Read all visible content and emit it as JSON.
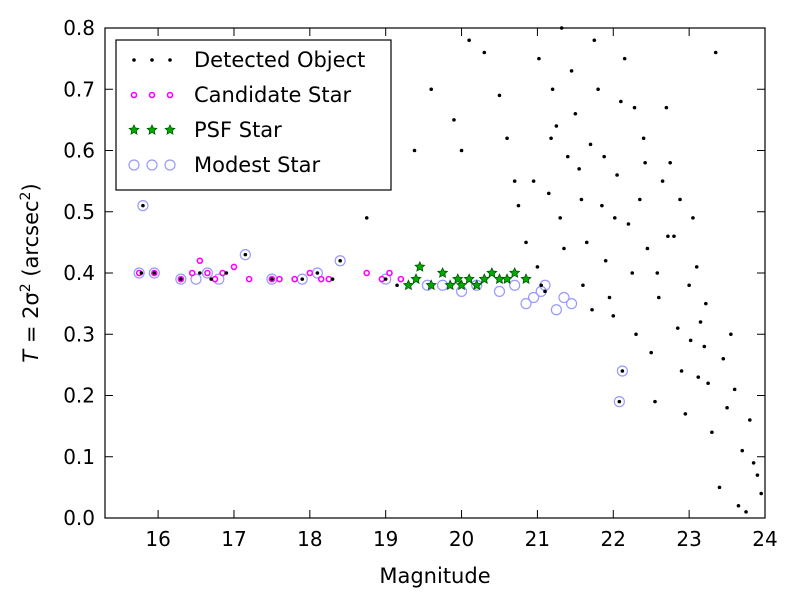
{
  "chart_data": {
    "type": "scatter",
    "xlabel": "Magnitude",
    "ylabel_parts": [
      "T",
      " = 2σ",
      "2",
      " (arcsec",
      "2",
      ")"
    ],
    "xlim": [
      15.3,
      24.0
    ],
    "ylim": [
      0.0,
      0.8
    ],
    "x_ticks": [
      16,
      17,
      18,
      19,
      20,
      21,
      22,
      23,
      24
    ],
    "y_ticks": [
      0.0,
      0.1,
      0.2,
      0.3,
      0.4,
      0.5,
      0.6,
      0.7,
      0.8
    ],
    "x_tick_labels": [
      "16",
      "17",
      "18",
      "19",
      "20",
      "21",
      "22",
      "23",
      "24"
    ],
    "y_tick_labels": [
      "0.0",
      "0.1",
      "0.2",
      "0.3",
      "0.4",
      "0.5",
      "0.6",
      "0.7",
      "0.8"
    ],
    "grid": false,
    "legend_position": "top-left",
    "colors": {
      "detected": "#000000",
      "candidate": "#ff00ff",
      "psf": "#00aa00",
      "modest": "#9999ff"
    },
    "series": [
      {
        "name": "Detected Object",
        "marker": "dot",
        "points": [
          [
            15.8,
            0.51
          ],
          [
            15.78,
            0.4
          ],
          [
            15.95,
            0.4
          ],
          [
            16.3,
            0.39
          ],
          [
            16.55,
            0.4
          ],
          [
            16.7,
            0.39
          ],
          [
            16.9,
            0.4
          ],
          [
            17.15,
            0.43
          ],
          [
            17.5,
            0.39
          ],
          [
            17.9,
            0.39
          ],
          [
            18.1,
            0.4
          ],
          [
            18.3,
            0.39
          ],
          [
            18.4,
            0.42
          ],
          [
            18.75,
            0.49
          ],
          [
            19.0,
            0.39
          ],
          [
            19.15,
            0.38
          ],
          [
            19.6,
            0.7
          ],
          [
            19.9,
            0.65
          ],
          [
            19.38,
            0.6
          ],
          [
            20.0,
            0.6
          ],
          [
            20.1,
            0.78
          ],
          [
            20.3,
            0.76
          ],
          [
            20.5,
            0.69
          ],
          [
            20.6,
            0.62
          ],
          [
            20.7,
            0.55
          ],
          [
            20.75,
            0.51
          ],
          [
            20.85,
            0.45
          ],
          [
            20.95,
            0.55
          ],
          [
            21.0,
            0.41
          ],
          [
            21.05,
            0.38
          ],
          [
            21.1,
            0.37
          ],
          [
            21.15,
            0.53
          ],
          [
            21.2,
            0.7
          ],
          [
            21.25,
            0.64
          ],
          [
            21.3,
            0.49
          ],
          [
            21.35,
            0.44
          ],
          [
            21.4,
            0.59
          ],
          [
            21.45,
            0.73
          ],
          [
            21.5,
            0.66
          ],
          [
            21.55,
            0.57
          ],
          [
            21.6,
            0.38
          ],
          [
            21.65,
            0.45
          ],
          [
            21.7,
            0.61
          ],
          [
            21.75,
            0.78
          ],
          [
            21.8,
            0.7
          ],
          [
            21.85,
            0.51
          ],
          [
            21.9,
            0.42
          ],
          [
            21.95,
            0.36
          ],
          [
            22.0,
            0.33
          ],
          [
            22.05,
            0.56
          ],
          [
            22.1,
            0.68
          ],
          [
            22.15,
            0.75
          ],
          [
            22.2,
            0.48
          ],
          [
            22.25,
            0.4
          ],
          [
            22.3,
            0.3
          ],
          [
            22.35,
            0.52
          ],
          [
            22.4,
            0.62
          ],
          [
            22.45,
            0.44
          ],
          [
            22.5,
            0.27
          ],
          [
            22.55,
            0.19
          ],
          [
            22.6,
            0.36
          ],
          [
            22.65,
            0.55
          ],
          [
            22.7,
            0.67
          ],
          [
            22.75,
            0.58
          ],
          [
            22.8,
            0.46
          ],
          [
            22.85,
            0.31
          ],
          [
            22.9,
            0.24
          ],
          [
            22.95,
            0.17
          ],
          [
            23.0,
            0.38
          ],
          [
            23.05,
            0.49
          ],
          [
            23.1,
            0.41
          ],
          [
            23.15,
            0.32
          ],
          [
            23.2,
            0.28
          ],
          [
            23.25,
            0.22
          ],
          [
            23.3,
            0.14
          ],
          [
            23.35,
            0.76
          ],
          [
            23.4,
            0.05
          ],
          [
            23.45,
            0.26
          ],
          [
            23.5,
            0.18
          ],
          [
            23.55,
            0.3
          ],
          [
            23.6,
            0.21
          ],
          [
            23.65,
            0.02
          ],
          [
            23.7,
            0.11
          ],
          [
            23.75,
            0.01
          ],
          [
            23.8,
            0.16
          ],
          [
            23.85,
            0.09
          ],
          [
            23.9,
            0.07
          ],
          [
            23.95,
            0.04
          ],
          [
            22.08,
            0.19
          ],
          [
            22.12,
            0.24
          ],
          [
            21.02,
            0.75
          ],
          [
            21.18,
            0.62
          ],
          [
            21.32,
            0.8
          ],
          [
            21.58,
            0.52
          ],
          [
            21.72,
            0.34
          ],
          [
            21.88,
            0.59
          ],
          [
            22.02,
            0.49
          ],
          [
            22.28,
            0.67
          ],
          [
            22.42,
            0.58
          ],
          [
            22.58,
            0.4
          ],
          [
            22.72,
            0.46
          ],
          [
            22.88,
            0.52
          ],
          [
            23.02,
            0.29
          ],
          [
            23.12,
            0.23
          ],
          [
            23.22,
            0.35
          ]
        ]
      },
      {
        "name": "Candidate Star",
        "marker": "small-circle",
        "points": [
          [
            15.75,
            0.4
          ],
          [
            15.95,
            0.4
          ],
          [
            16.3,
            0.39
          ],
          [
            16.45,
            0.4
          ],
          [
            16.55,
            0.42
          ],
          [
            16.65,
            0.4
          ],
          [
            16.75,
            0.39
          ],
          [
            16.85,
            0.4
          ],
          [
            17.0,
            0.41
          ],
          [
            17.2,
            0.39
          ],
          [
            17.5,
            0.39
          ],
          [
            17.6,
            0.39
          ],
          [
            17.8,
            0.39
          ],
          [
            18.0,
            0.4
          ],
          [
            18.15,
            0.39
          ],
          [
            18.25,
            0.39
          ],
          [
            18.75,
            0.4
          ],
          [
            18.95,
            0.39
          ],
          [
            19.05,
            0.4
          ],
          [
            19.2,
            0.39
          ]
        ]
      },
      {
        "name": "PSF Star",
        "marker": "star",
        "points": [
          [
            19.3,
            0.38
          ],
          [
            19.4,
            0.39
          ],
          [
            19.45,
            0.41
          ],
          [
            19.6,
            0.38
          ],
          [
            19.75,
            0.4
          ],
          [
            19.85,
            0.38
          ],
          [
            19.95,
            0.39
          ],
          [
            20.0,
            0.38
          ],
          [
            20.1,
            0.39
          ],
          [
            20.2,
            0.38
          ],
          [
            20.3,
            0.39
          ],
          [
            20.4,
            0.4
          ],
          [
            20.5,
            0.39
          ],
          [
            20.6,
            0.39
          ],
          [
            20.7,
            0.4
          ],
          [
            20.85,
            0.39
          ]
        ]
      },
      {
        "name": "Modest Star",
        "marker": "open-circle",
        "points": [
          [
            15.8,
            0.51
          ],
          [
            15.75,
            0.4
          ],
          [
            15.95,
            0.4
          ],
          [
            16.3,
            0.39
          ],
          [
            16.5,
            0.39
          ],
          [
            16.65,
            0.4
          ],
          [
            16.8,
            0.39
          ],
          [
            17.15,
            0.43
          ],
          [
            17.5,
            0.39
          ],
          [
            17.9,
            0.39
          ],
          [
            18.1,
            0.4
          ],
          [
            18.4,
            0.42
          ],
          [
            19.0,
            0.39
          ],
          [
            19.55,
            0.38
          ],
          [
            19.75,
            0.38
          ],
          [
            20.0,
            0.37
          ],
          [
            20.2,
            0.38
          ],
          [
            20.5,
            0.37
          ],
          [
            20.7,
            0.38
          ],
          [
            20.85,
            0.35
          ],
          [
            20.95,
            0.36
          ],
          [
            21.05,
            0.37
          ],
          [
            21.1,
            0.38
          ],
          [
            21.25,
            0.34
          ],
          [
            21.35,
            0.36
          ],
          [
            21.45,
            0.35
          ],
          [
            22.08,
            0.19
          ],
          [
            22.12,
            0.24
          ]
        ]
      }
    ]
  }
}
